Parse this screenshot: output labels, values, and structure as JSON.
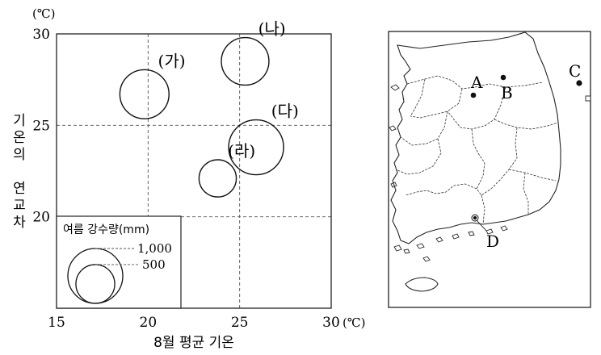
{
  "chart_data": {
    "type": "scatter",
    "xlabel": "8월 평균 기온",
    "ylabel": "기온의 연교차",
    "x_unit": "(℃)",
    "y_unit": "(℃)",
    "xlim": [
      15,
      30
    ],
    "ylim": [
      15,
      30
    ],
    "x_ticks": [
      15,
      20,
      25,
      30
    ],
    "y_ticks": [
      20,
      25,
      30
    ],
    "grid": true,
    "size_variable": "여름 강수량(mm)",
    "points": [
      {
        "label": "(가)",
        "x": 19.8,
        "y": 26.7,
        "precip": 800
      },
      {
        "label": "(나)",
        "x": 25.3,
        "y": 28.5,
        "precip": 750
      },
      {
        "label": "(다)",
        "x": 25.9,
        "y": 23.8,
        "precip": 1000
      },
      {
        "label": "(라)",
        "x": 23.8,
        "y": 22.1,
        "precip": 460
      }
    ],
    "legend": {
      "title": "여름 강수량(mm)",
      "entries": [
        {
          "label": "1,000",
          "value": 1000
        },
        {
          "label": "500",
          "value": 500
        }
      ],
      "placement": "bottom-left"
    }
  },
  "map": {
    "locations": [
      {
        "label": "A"
      },
      {
        "label": "B"
      },
      {
        "label": "C"
      },
      {
        "label": "D"
      }
    ]
  }
}
